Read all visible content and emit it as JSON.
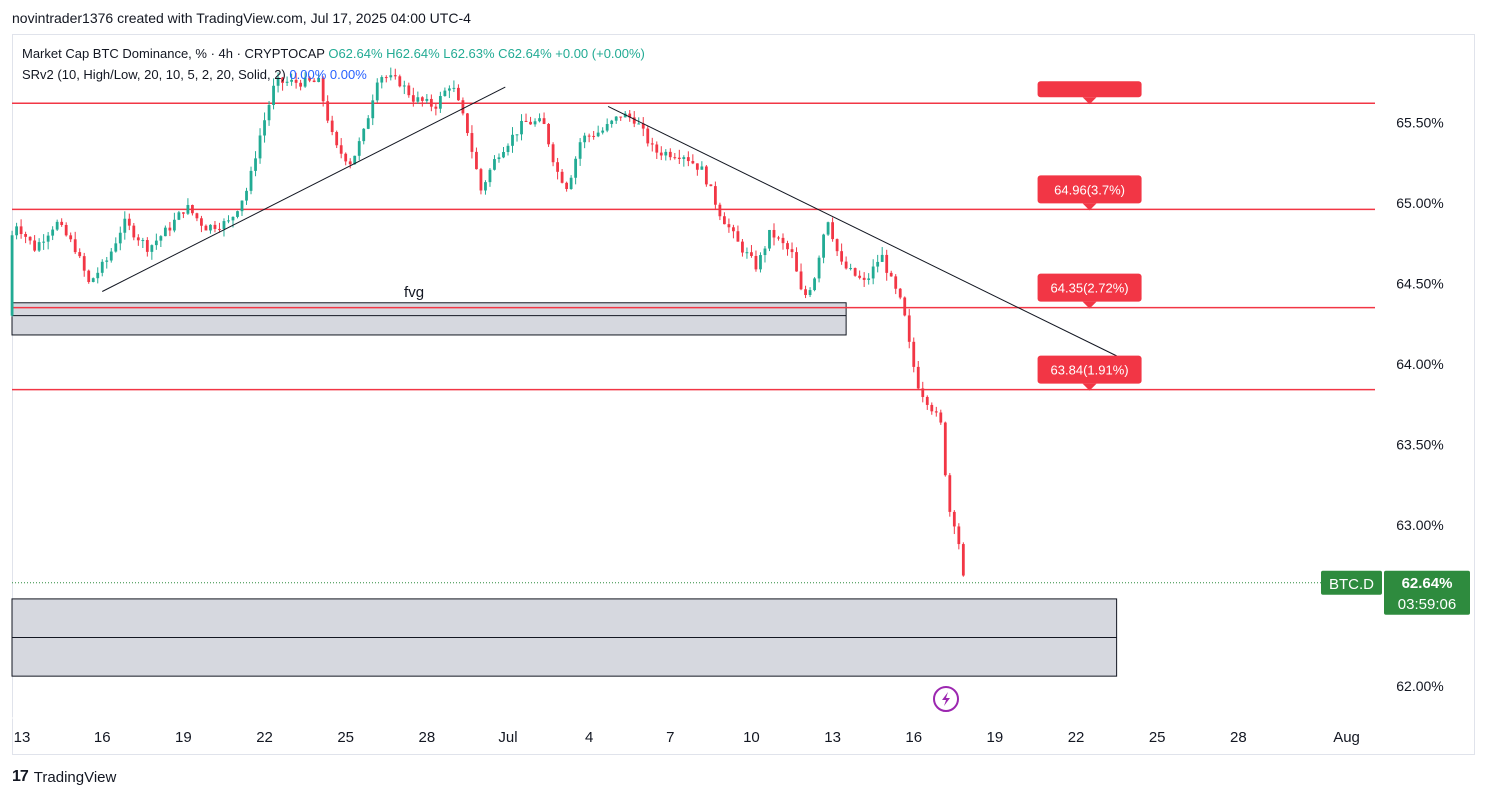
{
  "header": {
    "caption": "novintrader1376 created with TradingView.com, Jul 17, 2025 04:00 UTC-4"
  },
  "legend": {
    "symbol": "Market Cap BTC Dominance, % · 4h · CRYPTOCAP",
    "ohlc": "O62.64% H62.64% L62.63% C62.64% +0.00 (+0.00%)",
    "indicator": "SRv2 (10, High/Low, 20, 10, 5, 2, 20, Solid, 2)",
    "ind_values": [
      "0.00%",
      "0.00%"
    ]
  },
  "colors": {
    "up": "#22ab94",
    "down": "#f23645",
    "level_line": "#f23645",
    "price_badge": "#2e8b3e",
    "zone_fill": "#d1d4dc",
    "trendline": "#131722"
  },
  "footer": {
    "brand": "TradingView",
    "logo_icon": "tradingview-logo-icon"
  },
  "lightning_icon": "lightning-icon",
  "chart_data": {
    "type": "candlestick",
    "symbol": "BTC.D",
    "timeframe": "4h",
    "y_unit": "%",
    "ylim": [
      61.8,
      66.05
    ],
    "y_ticks": [
      "65.50%",
      "65.00%",
      "64.50%",
      "64.00%",
      "63.50%",
      "63.00%",
      "62.00%"
    ],
    "y_tick_values": [
      65.5,
      65.0,
      64.5,
      64.0,
      63.5,
      63.0,
      62.0
    ],
    "x_tick_labels": [
      "13",
      "16",
      "19",
      "22",
      "25",
      "28",
      "Jul",
      "4",
      "7",
      "10",
      "13",
      "16",
      "19",
      "22",
      "25",
      "28",
      "Aug"
    ],
    "x_tick_days": [
      -18,
      -15,
      -12,
      -9,
      -6,
      -3,
      0,
      3,
      6,
      9,
      12,
      15,
      18,
      21,
      24,
      27,
      31
    ],
    "x_range_days": [
      -18.5,
      35
    ],
    "current_price": {
      "label": "BTC.D",
      "value": "62.64%",
      "countdown": "03:59:06",
      "level": 62.64
    },
    "sr_levels": [
      {
        "value": 65.62,
        "label": ""
      },
      {
        "value": 64.96,
        "label": "64.96(3.7%)"
      },
      {
        "value": 64.35,
        "label": "64.35(2.72%)"
      },
      {
        "value": 63.84,
        "label": "63.84(1.91%)"
      }
    ],
    "zones": [
      {
        "label": "fvg",
        "from_day": -18.5,
        "to_day": 12.5,
        "top": 64.38,
        "mid": 64.3,
        "bottom": 64.18
      },
      {
        "label": "",
        "from_day": -18.5,
        "to_day": 22.5,
        "top": 62.54,
        "mid": 62.3,
        "bottom": 62.06
      }
    ],
    "trendlines": [
      {
        "from": [
          -15,
          64.45
        ],
        "to": [
          -0.1,
          65.72
        ]
      },
      {
        "from": [
          3.7,
          65.6
        ],
        "to": [
          22.5,
          64.05
        ]
      }
    ],
    "path_points": [
      [
        -18.5,
        64.3
      ],
      [
        -18.3,
        64.9
      ],
      [
        -17.5,
        64.72
      ],
      [
        -16.7,
        64.88
      ],
      [
        -16,
        64.72
      ],
      [
        -15.5,
        64.5
      ],
      [
        -14.8,
        64.65
      ],
      [
        -14.2,
        64.88
      ],
      [
        -13.3,
        64.72
      ],
      [
        -12.5,
        64.85
      ],
      [
        -11.9,
        64.98
      ],
      [
        -11.2,
        64.85
      ],
      [
        -10.3,
        64.88
      ],
      [
        -9.6,
        65.1
      ],
      [
        -9.2,
        65.4
      ],
      [
        -8.6,
        65.75
      ],
      [
        -7.8,
        65.75
      ],
      [
        -7,
        65.75
      ],
      [
        -6.4,
        65.35
      ],
      [
        -5.8,
        65.25
      ],
      [
        -5.3,
        65.45
      ],
      [
        -4.8,
        65.8
      ],
      [
        -4,
        65.75
      ],
      [
        -3.5,
        65.65
      ],
      [
        -2.7,
        65.6
      ],
      [
        -2.1,
        65.75
      ],
      [
        -1.5,
        65.45
      ],
      [
        -1,
        65.08
      ],
      [
        -0.4,
        65.3
      ],
      [
        0.6,
        65.5
      ],
      [
        1.3,
        65.5
      ],
      [
        1.8,
        65.2
      ],
      [
        2.2,
        65.1
      ],
      [
        2.7,
        65.4
      ],
      [
        3.5,
        65.45
      ],
      [
        4.2,
        65.55
      ],
      [
        4.7,
        65.52
      ],
      [
        5.4,
        65.32
      ],
      [
        6.5,
        65.3
      ],
      [
        7.2,
        65.2
      ],
      [
        7.8,
        64.95
      ],
      [
        8.5,
        64.75
      ],
      [
        9.2,
        64.6
      ],
      [
        9.7,
        64.82
      ],
      [
        10.5,
        64.68
      ],
      [
        10.9,
        64.4
      ],
      [
        11.3,
        64.52
      ],
      [
        11.8,
        64.92
      ],
      [
        12.3,
        64.62
      ],
      [
        13.2,
        64.5
      ],
      [
        13.8,
        64.68
      ],
      [
        14.2,
        64.5
      ],
      [
        14.6,
        64.35
      ],
      [
        14.9,
        64.05
      ],
      [
        15.2,
        63.85
      ],
      [
        15.6,
        63.75
      ],
      [
        16,
        63.62
      ],
      [
        16.3,
        63.1
      ],
      [
        16.6,
        62.98
      ],
      [
        16.85,
        62.64
      ]
    ]
  }
}
